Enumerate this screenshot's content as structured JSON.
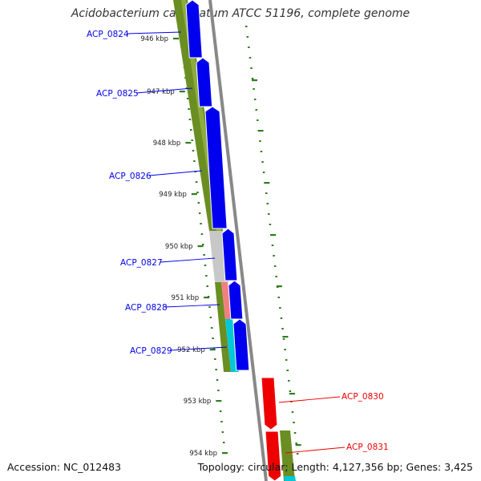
{
  "title": "Acidobacterium capsulatum ATCC 51196, complete genome",
  "accession": "Accession: NC_012483",
  "topology": "Topology: circular; Length: 4,127,356 bp; Genes: 3,425",
  "colors": {
    "forward_gene": "#0000ee",
    "reverse_gene": "#ee0000",
    "backbone": "#888888",
    "cds_track": "#6b8e23",
    "grey_feature": "#c8c8c8",
    "pink_feature": "#f08080",
    "cyan_feature": "#00c8d8",
    "tick_color": "#2e7d1e"
  },
  "ticks": [
    "946 kbp",
    "947 kbp",
    "948 kbp",
    "949 kbp",
    "950 kbp",
    "951 kbp",
    "952 kbp",
    "953 kbp",
    "954 kbp"
  ],
  "genes": [
    {
      "name": "ACP_0824",
      "strand": "forward"
    },
    {
      "name": "ACP_0825",
      "strand": "forward"
    },
    {
      "name": "ACP_0826",
      "strand": "forward"
    },
    {
      "name": "ACP_0827",
      "strand": "forward"
    },
    {
      "name": "ACP_0828",
      "strand": "forward"
    },
    {
      "name": "ACP_0829",
      "strand": "forward"
    },
    {
      "name": "ACP_0830",
      "strand": "reverse"
    },
    {
      "name": "ACP_0831",
      "strand": "reverse"
    }
  ]
}
